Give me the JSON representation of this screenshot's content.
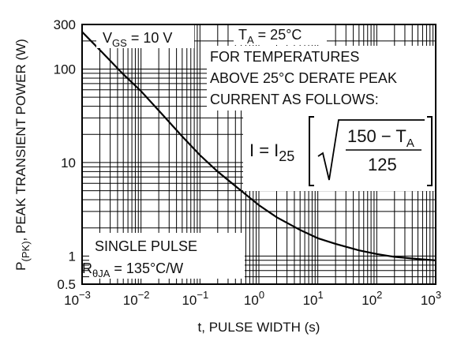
{
  "chart_data": {
    "type": "line",
    "x_scale": "log",
    "y_scale": "log",
    "xlim": [
      0.001,
      1000
    ],
    "ylim": [
      0.5,
      300
    ],
    "grid": true,
    "xlabel": "t, PULSE WIDTH (s)",
    "ylabel": {
      "pre": "P",
      "sub": "(PK)",
      "post": ", PEAK TRANSIENT POWER (W)"
    },
    "x_ticks": [
      {
        "value": 0.001,
        "base": "10",
        "exp": "−3"
      },
      {
        "value": 0.01,
        "base": "10",
        "exp": "−2"
      },
      {
        "value": 0.1,
        "base": "10",
        "exp": "−1"
      },
      {
        "value": 1,
        "base": "10",
        "exp": "0"
      },
      {
        "value": 10,
        "base": "10",
        "exp": "1"
      },
      {
        "value": 100,
        "base": "10",
        "exp": "2"
      },
      {
        "value": 1000,
        "base": "10",
        "exp": "3"
      }
    ],
    "y_ticks": [
      {
        "value": 300,
        "label": "300"
      },
      {
        "value": 100,
        "label": "100"
      },
      {
        "value": 10,
        "label": "10"
      },
      {
        "value": 1,
        "label": "1"
      },
      {
        "value": 0.5,
        "label": "0.5"
      }
    ],
    "series": [
      {
        "color": "#000000",
        "x": [
          0.001,
          0.002,
          0.005,
          0.01,
          0.02,
          0.05,
          0.1,
          0.2,
          0.5,
          1,
          2,
          5,
          10,
          20,
          50,
          100,
          200,
          500,
          1000
        ],
        "y": [
          250,
          160,
          88,
          58,
          36,
          19,
          12,
          8,
          5,
          3.5,
          2.6,
          1.9,
          1.55,
          1.35,
          1.15,
          1.05,
          0.98,
          0.93,
          0.9
        ]
      }
    ],
    "annotations": {
      "vgs": {
        "pre": "V",
        "sub": "GS",
        "post": " = 10 V"
      },
      "ta": {
        "pre": "T",
        "sub": "A",
        "post": " = 25°C"
      },
      "derate": [
        "FOR TEMPERATURES",
        "ABOVE 25°C DERATE PEAK",
        "CURRENT AS FOLLOWS:"
      ],
      "formula": {
        "lhs": "I = I",
        "lhs_sub": "25",
        "numerator": "150 − T",
        "numerator_sub": "A",
        "denominator": "125"
      },
      "single_pulse": "SINGLE PULSE",
      "rtheta": {
        "pre": "R",
        "sub": "θJA",
        "post": " = 135°C/W"
      }
    }
  }
}
